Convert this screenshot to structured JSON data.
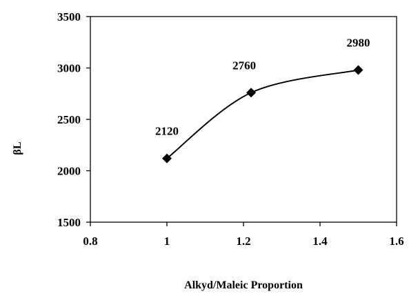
{
  "chart_data": {
    "type": "line",
    "title": "",
    "xlabel": "Alkyd/Maleic Proportion",
    "ylabel": "βL",
    "xlim": [
      0.8,
      1.6
    ],
    "ylim": [
      1500,
      3500
    ],
    "x_ticks": [
      0.8,
      1,
      1.2,
      1.4,
      1.6
    ],
    "x_tick_labels": [
      "0.8",
      "1",
      "1.2",
      "1.4",
      "1.6"
    ],
    "y_ticks": [
      1500,
      2000,
      2500,
      3000,
      3500
    ],
    "y_tick_labels": [
      "1500",
      "2000",
      "2500",
      "3000",
      "3500"
    ],
    "grid": false,
    "legend": "none",
    "smoothed": true,
    "marker": "diamond",
    "series": [
      {
        "x": [
          1.0,
          1.22,
          1.5
        ],
        "y": [
          2120,
          2760,
          2980
        ],
        "data_labels": [
          "2120",
          "2760",
          "2980"
        ],
        "color": "#000000"
      }
    ]
  }
}
